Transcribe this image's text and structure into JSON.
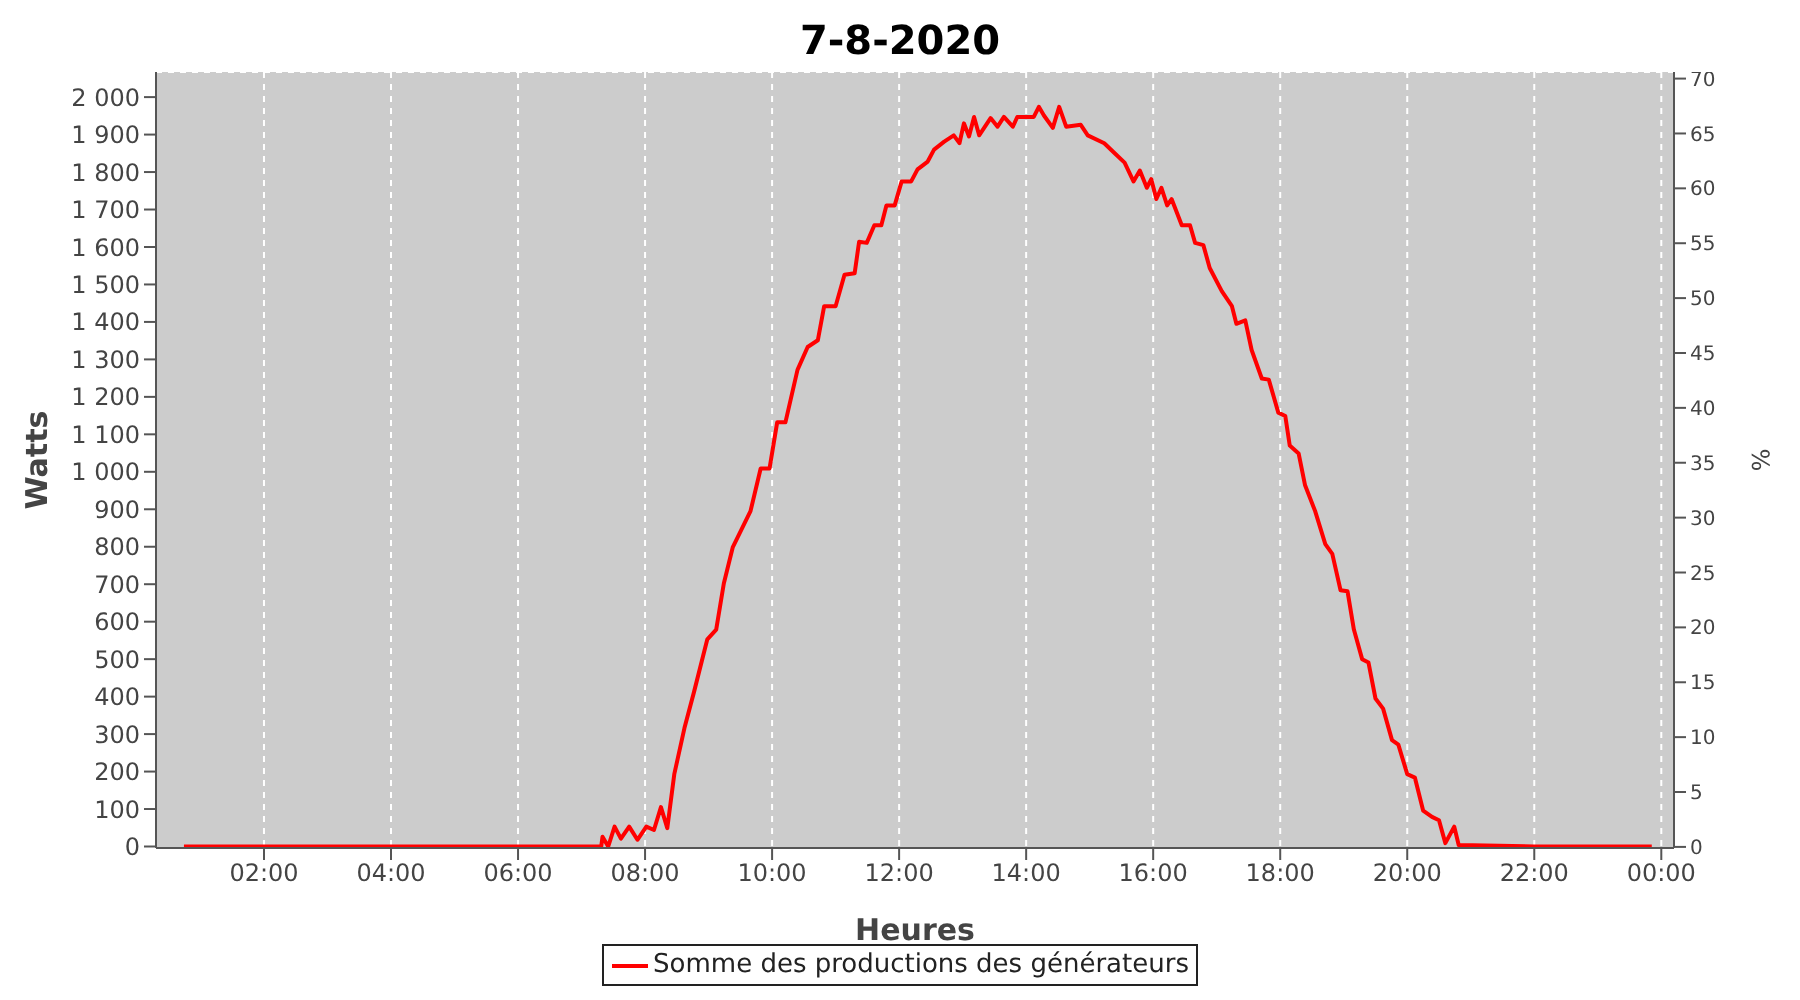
{
  "chart_data": {
    "type": "line",
    "title": "7-8-2020",
    "xlabel": "Heures",
    "ylabel": "Watts",
    "y2label": "%",
    "x": [
      0.74,
      1.5,
      2.5,
      3.5,
      4.5,
      5.5,
      6.2,
      7.0,
      7.31,
      7.33,
      7.42,
      7.52,
      7.62,
      7.75,
      7.88,
      8.02,
      8.14,
      8.25,
      8.35,
      8.46,
      8.62,
      8.77,
      8.98,
      9.12,
      9.24,
      9.38,
      9.66,
      9.82,
      9.96,
      10.08,
      10.21,
      10.4,
      10.56,
      10.72,
      10.82,
      11.0,
      11.14,
      11.3,
      11.37,
      11.49,
      11.61,
      11.72,
      11.8,
      11.93,
      12.04,
      12.19,
      12.29,
      12.45,
      12.55,
      12.71,
      12.86,
      12.95,
      13.02,
      13.1,
      13.18,
      13.26,
      13.44,
      13.55,
      13.65,
      13.79,
      13.86,
      14.12,
      14.2,
      14.28,
      14.42,
      14.52,
      14.63,
      14.86,
      14.97,
      15.23,
      15.39,
      15.55,
      15.69,
      15.79,
      15.9,
      15.97,
      16.05,
      16.13,
      16.22,
      16.29,
      16.45,
      16.58,
      16.66,
      16.79,
      16.89,
      17.08,
      17.24,
      17.31,
      17.45,
      17.55,
      17.71,
      17.82,
      17.97,
      18.08,
      18.15,
      18.29,
      18.39,
      18.55,
      18.71,
      18.82,
      18.95,
      19.06,
      19.16,
      19.29,
      19.39,
      19.5,
      19.62,
      19.76,
      19.86,
      20.0,
      20.12,
      20.25,
      20.39,
      20.5,
      20.6,
      20.74,
      20.81,
      22.0,
      23.85
    ],
    "series": [
      {
        "name": "Somme des productions des  générateurs",
        "color": "#ff0000",
        "values": [
          0,
          0,
          0,
          0,
          0,
          0,
          0,
          0,
          0,
          26,
          0,
          53,
          21,
          53,
          18,
          53,
          44,
          105,
          49,
          193,
          316,
          412,
          553,
          579,
          702,
          798,
          895,
          1009,
          1009,
          1132,
          1132,
          1272,
          1333,
          1351,
          1442,
          1442,
          1526,
          1530,
          1614,
          1611,
          1658,
          1658,
          1711,
          1711,
          1775,
          1775,
          1807,
          1828,
          1860,
          1881,
          1898,
          1877,
          1930,
          1895,
          1947,
          1898,
          1944,
          1921,
          1947,
          1921,
          1947,
          1947,
          1974,
          1951,
          1918,
          1974,
          1921,
          1926,
          1898,
          1877,
          1851,
          1825,
          1775,
          1804,
          1758,
          1781,
          1728,
          1758,
          1711,
          1728,
          1658,
          1658,
          1611,
          1605,
          1544,
          1482,
          1442,
          1395,
          1404,
          1325,
          1249,
          1246,
          1158,
          1149,
          1070,
          1049,
          965,
          895,
          807,
          781,
          684,
          681,
          579,
          500,
          491,
          395,
          368,
          284,
          272,
          193,
          184,
          96,
          79,
          70,
          9,
          53,
          4,
          0,
          0
        ]
      }
    ],
    "xlim": [
      0.3,
      24.2
    ],
    "xticks": [
      {
        "value": 2,
        "label": "02:00"
      },
      {
        "value": 4,
        "label": "04:00"
      },
      {
        "value": 6,
        "label": "06:00"
      },
      {
        "value": 8,
        "label": "08:00"
      },
      {
        "value": 10,
        "label": "10:00"
      },
      {
        "value": 12,
        "label": "12:00"
      },
      {
        "value": 14,
        "label": "14:00"
      },
      {
        "value": 16,
        "label": "16:00"
      },
      {
        "value": 18,
        "label": "18:00"
      },
      {
        "value": 20,
        "label": "20:00"
      },
      {
        "value": 22,
        "label": "22:00"
      },
      {
        "value": 24,
        "label": "00:00"
      }
    ],
    "ylim": [
      -4,
      2067
    ],
    "yticks": [
      0,
      100,
      200,
      300,
      400,
      500,
      600,
      700,
      800,
      900,
      {
        "value": 1000,
        "label": "1 000"
      },
      {
        "value": 1100,
        "label": "1 100"
      },
      {
        "value": 1200,
        "label": "1 200"
      },
      {
        "value": 1300,
        "label": "1 300"
      },
      {
        "value": 1400,
        "label": "1 400"
      },
      {
        "value": 1500,
        "label": "1 500"
      },
      {
        "value": 1600,
        "label": "1 600"
      },
      {
        "value": 1700,
        "label": "1 700"
      },
      {
        "value": 1800,
        "label": "1 800"
      },
      {
        "value": 1900,
        "label": "1 900"
      },
      {
        "value": 2000,
        "label": "2 000"
      }
    ],
    "y2lim": [
      -0.1,
      70.6
    ],
    "y2ticks": [
      0,
      5,
      10,
      15,
      20,
      25,
      30,
      35,
      40,
      45,
      50,
      55,
      60,
      65,
      70
    ],
    "grid": true,
    "legend": "bottom",
    "marker": "none",
    "line_style": "solid"
  }
}
